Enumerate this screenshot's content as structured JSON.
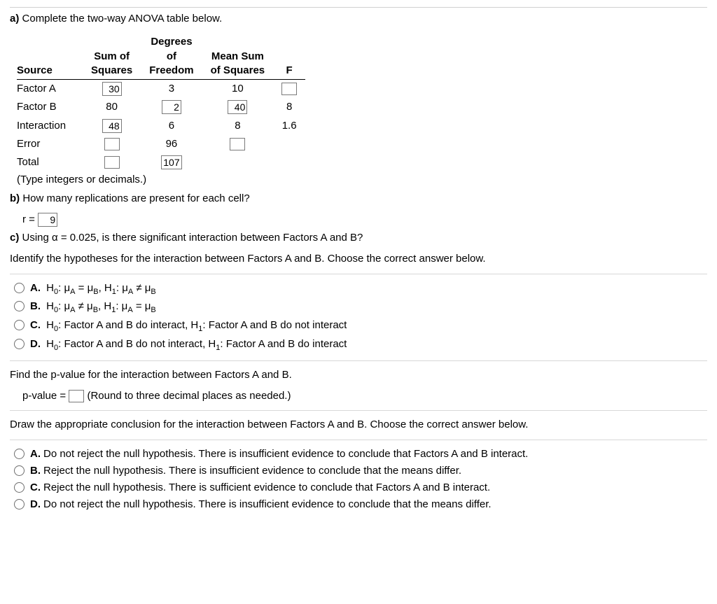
{
  "partA": {
    "label": "a)",
    "prompt": "Complete the two-way ANOVA table below.",
    "headers": {
      "source": "Source",
      "ss": "Sum of Squares",
      "df": "Degrees of Freedom",
      "ms": "Mean Sum of Squares",
      "f": "F"
    },
    "rows": {
      "factorA": {
        "label": "Factor A",
        "ss": "30",
        "df": "3",
        "ms": "10",
        "f": ""
      },
      "factorB": {
        "label": "Factor B",
        "ss": "80",
        "df": "2",
        "ms": "40",
        "f": "8"
      },
      "interaction": {
        "label": "Interaction",
        "ss": "48",
        "df": "6",
        "ms": "8",
        "f": "1.6"
      },
      "error": {
        "label": "Error",
        "ss": "",
        "df": "96",
        "ms": ""
      },
      "total": {
        "label": "Total",
        "ss": "",
        "df": "107"
      }
    },
    "note": "(Type integers or decimals.)"
  },
  "partB": {
    "label": "b)",
    "prompt": "How many replications are present for each cell?",
    "var": "r =",
    "value": "9"
  },
  "partC": {
    "label": "c)",
    "prompt": "Using α = 0.025, is there significant interaction between Factors A and B?",
    "identify": "Identify the hypotheses for the interaction between Factors A and B. Choose the correct answer below.",
    "hypChoices": {
      "A": "H₀: μ_A = μ_B, H₁: μ_A ≠ μ_B",
      "B": "H₀: μ_A ≠ μ_B, H₁: μ_A = μ_B",
      "C": "H₀: Factor A and B do interact, H₁: Factor A and B do not interact",
      "D": "H₀: Factor A and B do not interact, H₁: Factor A and B do interact"
    },
    "findP": "Find the p-value for the interaction between Factors A and B.",
    "pLabel": "p-value =",
    "pNote": "(Round to three decimal places as needed.)",
    "conclude": "Draw the appropriate conclusion for the interaction between Factors A and B. Choose the correct answer below.",
    "concChoices": {
      "A": "Do not reject the null hypothesis. There is insufficient evidence to conclude that Factors A and B interact.",
      "B": "Reject the null hypothesis. There is insufficient evidence to conclude that the means differ.",
      "C": "Reject the null hypothesis. There is sufficient evidence to conclude that Factors A and B interact.",
      "D": "Do not reject the null hypothesis. There is insufficient evidence to conclude that the means differ."
    },
    "letters": {
      "A": "A.",
      "B": "B.",
      "C": "C.",
      "D": "D."
    }
  }
}
